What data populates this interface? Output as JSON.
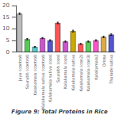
{
  "chart_data": {
    "type": "bar",
    "title": "Figure 9: Total Proteins in Rice",
    "categories": [
      "Jaya (control)",
      "Saurabh (control)",
      "Kalakamala (control)",
      "Kalakamala sativa (control)",
      "Kalakamala sativa (con)",
      "Saurabh (con)",
      "Kalakamala (con)",
      "Kalakamala sativa",
      "Kalakamala (con2)",
      "Kalakamala (con3)",
      "Kalakamala2",
      "Orissa",
      "Tharode sativa"
    ],
    "values": [
      16.5,
      5.5,
      2.2,
      6.0,
      5.0,
      12.5,
      4.5,
      9.0,
      3.5,
      4.5,
      5.0,
      6.5,
      7.5
    ],
    "errors": [
      0.35,
      0.3,
      0.2,
      0.25,
      0.3,
      0.35,
      0.25,
      0.4,
      0.2,
      0.25,
      0.3,
      0.3,
      0.3
    ],
    "colors": [
      "#bbbbbb",
      "#55cc55",
      "#55cccc",
      "#cc55cc",
      "#5555cc",
      "#ff5555",
      "#cc55cc",
      "#ccaa00",
      "#ff5555",
      "#55cc55",
      "#ff55cc",
      "#ddaa44",
      "#5555cc"
    ],
    "ylim": [
      0,
      20
    ],
    "yticks": [
      0,
      5,
      10,
      15,
      20
    ],
    "grid": false
  }
}
